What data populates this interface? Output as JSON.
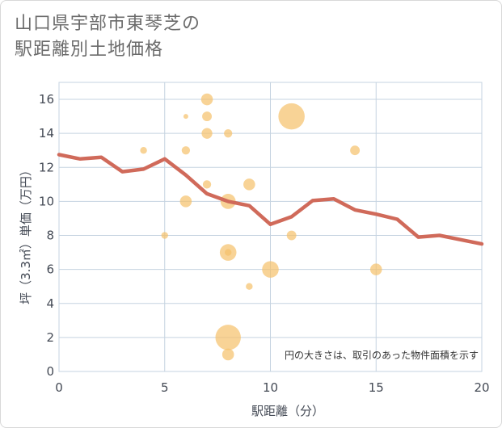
{
  "title_line1": "山口県宇部市東琴芝の",
  "title_line2": "駅距離別土地価格",
  "chart_data": {
    "type": "scatter+line",
    "xlabel": "駅距離（分）",
    "ylabel": "坪（3.3㎡）単価（万円）",
    "xlim": [
      0,
      20
    ],
    "ylim": [
      0,
      17
    ],
    "xticks": [
      0,
      5,
      10,
      15,
      20
    ],
    "yticks": [
      0,
      2,
      4,
      6,
      8,
      10,
      12,
      14,
      16
    ],
    "grid": true,
    "note": "円の大きさは、取引のあった物件面積を示す",
    "colors": {
      "bubble": "#f5c06a",
      "line": "#d06a5a",
      "grid": "#c5d3e0"
    },
    "line": {
      "x": [
        0,
        1,
        2,
        3,
        4,
        5,
        6,
        7,
        8,
        9,
        10,
        11,
        12,
        13,
        14,
        15,
        16,
        17,
        18,
        19,
        20
      ],
      "y": [
        12.75,
        12.5,
        12.6,
        11.75,
        11.9,
        12.5,
        11.55,
        10.45,
        10.0,
        9.75,
        8.65,
        9.1,
        10.05,
        10.15,
        9.5,
        9.25,
        8.95,
        7.9,
        8.0,
        7.75,
        7.5
      ]
    },
    "bubbles": [
      {
        "x": 4,
        "y": 13,
        "size": 1
      },
      {
        "x": 5,
        "y": 8,
        "size": 1
      },
      {
        "x": 6,
        "y": 15,
        "size": 0.5
      },
      {
        "x": 6,
        "y": 13,
        "size": 1.5
      },
      {
        "x": 6,
        "y": 10,
        "size": 3
      },
      {
        "x": 7,
        "y": 16,
        "size": 3
      },
      {
        "x": 7,
        "y": 15,
        "size": 2
      },
      {
        "x": 7,
        "y": 14,
        "size": 2.5
      },
      {
        "x": 7,
        "y": 11,
        "size": 1.5
      },
      {
        "x": 8,
        "y": 14,
        "size": 1.5
      },
      {
        "x": 8,
        "y": 10,
        "size": 5
      },
      {
        "x": 8,
        "y": 7,
        "size": 6
      },
      {
        "x": 8,
        "y": 7,
        "size": 1
      },
      {
        "x": 8,
        "y": 2,
        "size": 14
      },
      {
        "x": 8,
        "y": 1,
        "size": 3
      },
      {
        "x": 9,
        "y": 11,
        "size": 3
      },
      {
        "x": 9,
        "y": 5,
        "size": 1
      },
      {
        "x": 10,
        "y": 6,
        "size": 6
      },
      {
        "x": 11,
        "y": 15,
        "size": 15
      },
      {
        "x": 11,
        "y": 8,
        "size": 2
      },
      {
        "x": 14,
        "y": 13,
        "size": 2
      },
      {
        "x": 15,
        "y": 6,
        "size": 3
      }
    ]
  }
}
